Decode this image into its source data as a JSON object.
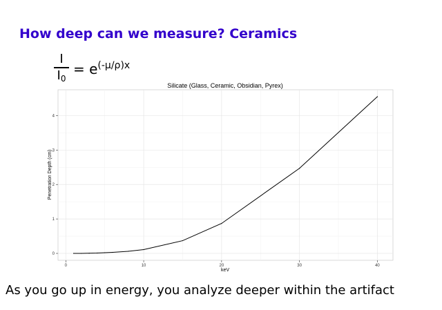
{
  "slide": {
    "title": "How deep can we measure? Ceramics",
    "formula": {
      "numerator": "I",
      "denominator": "I",
      "denominator_sub": "0",
      "rhs_base": "= e",
      "rhs_exponent": "(-μ/ρ)x"
    },
    "caption": "As you go up in energy, you analyze deeper within the artifact"
  },
  "chart_data": {
    "type": "line",
    "title": "Silicate (Glass, Ceramic, Obsidian, Pyrex)",
    "xlabel": "keV",
    "ylabel": "Penetration Depth (cm)",
    "xlim": [
      -1,
      42
    ],
    "ylim": [
      -0.2,
      4.75
    ],
    "xticks": [
      0,
      10,
      20,
      30,
      40
    ],
    "yticks": [
      0,
      1,
      2,
      3,
      4
    ],
    "grid": true,
    "background": "#ffffff",
    "line_color": "#000000",
    "series": [
      {
        "x": [
          1,
          2,
          3,
          4,
          5,
          6,
          8,
          10,
          15,
          20,
          30,
          40
        ],
        "y": [
          0.0,
          0.0,
          0.005,
          0.01,
          0.02,
          0.03,
          0.06,
          0.11,
          0.37,
          0.87,
          2.47,
          4.55
        ]
      }
    ]
  }
}
